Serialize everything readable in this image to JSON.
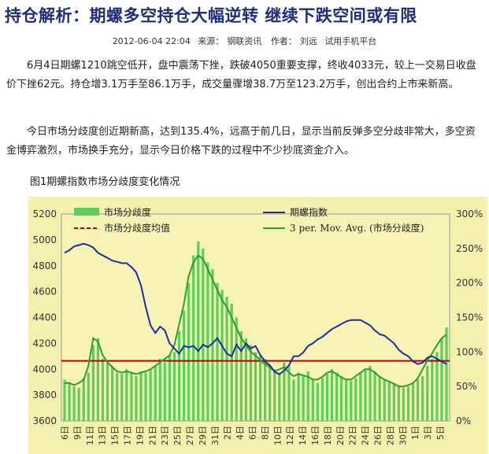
{
  "article": {
    "title": "持仓解析：期螺多空持仓大幅逆转  继续下跌空间或有限",
    "meta": {
      "datetime": "2012-06-04 22:04",
      "source_label": "来源：",
      "source": "钢联资讯",
      "author_label": "作者：",
      "author": "刘远",
      "link": "试用手机平台"
    },
    "paragraphs": [
      "6月4日期螺1210跳空低开，盘中震荡下挫，跌破4050重要支撑，终收4033元，较上一交易日收盘价下挫62元。持仓增3.1万手至86.1万手，成交量骤增38.7万至123.2万手，创出合约上市来新高。",
      "今日市场分歧度创近期新高，达到135.4%，远高于前几日，显示当前反弹多空分歧非常大，多空资金博弈激烈，市场换手充分，显示今日价格下跌的过程中不少抄底资金介入。"
    ],
    "figure_caption": "图1期螺指数市场分歧度变化情况"
  },
  "chart_data": {
    "type": "line",
    "title": "",
    "legend": [
      {
        "name": "市场分歧度",
        "color": "#4cc04c",
        "kind": "bar"
      },
      {
        "name": "市场分歧度均值",
        "color": "#c00000",
        "kind": "dashed"
      },
      {
        "name": "期螺指数",
        "color": "#1c2e9e",
        "kind": "line"
      },
      {
        "name": "3 per. Mov. Avg. (市场分歧度)",
        "color": "#2fa02f",
        "kind": "line"
      }
    ],
    "y_left": {
      "min": 3600,
      "max": 5200,
      "ticks": [
        "3600",
        "3800",
        "4000",
        "4200",
        "4400",
        "4600",
        "4800",
        "5000",
        "5200"
      ]
    },
    "y_right": {
      "min": 0,
      "max": 300,
      "ticks": [
        "0%",
        "50%",
        "100%",
        "150%",
        "200%",
        "250%",
        "300%"
      ]
    },
    "x_tick_labels": [
      "6日",
      "9日",
      "11日",
      "13日",
      "15日",
      "17日",
      "19日",
      "21日",
      "23日",
      "25日",
      "27日",
      "29日",
      "31日",
      "2日",
      "4日",
      "6日",
      "8日",
      "10日",
      "12日",
      "14日",
      "16日",
      "18日",
      "20日",
      "22日",
      "24日",
      "26日",
      "28日",
      "30日",
      "1日",
      "3日",
      "5日"
    ],
    "mean_value": 4065,
    "price_index": [
      4900,
      4920,
      4950,
      4960,
      4970,
      4960,
      4940,
      4900,
      4880,
      4860,
      4840,
      4830,
      4820,
      4820,
      4790,
      4750,
      4650,
      4480,
      4340,
      4280,
      4330,
      4300,
      4200,
      4160,
      4120,
      4180,
      4170,
      4180,
      4140,
      4190,
      4170,
      4200,
      4240,
      4180,
      4120,
      4100,
      4190,
      4140,
      4200,
      4160,
      4180,
      4110,
      4060,
      4030,
      3980,
      3960,
      3990,
      4030,
      4100,
      4100,
      4130,
      4180,
      4200,
      4230,
      4250,
      4280,
      4310,
      4330,
      4350,
      4370,
      4380,
      4380,
      4380,
      4360,
      4340,
      4300,
      4270,
      4260,
      4230,
      4200,
      4150,
      4120,
      4100,
      4060,
      4040,
      4050,
      4090,
      4100,
      4080,
      4060,
      4040
    ],
    "divergence": [
      60,
      55,
      50,
      48,
      62,
      70,
      110,
      120,
      90,
      85,
      80,
      70,
      68,
      75,
      70,
      65,
      72,
      70,
      75,
      80,
      90,
      85,
      95,
      100,
      130,
      160,
      200,
      240,
      260,
      250,
      230,
      220,
      200,
      190,
      180,
      170,
      150,
      130,
      120,
      110,
      100,
      95,
      90,
      80,
      75,
      70,
      85,
      80,
      60,
      70,
      65,
      72,
      60,
      55,
      62,
      68,
      75,
      70,
      65,
      60,
      58,
      62,
      70,
      75,
      80,
      72,
      65,
      60,
      58,
      55,
      52,
      48,
      50,
      55,
      60,
      65,
      80,
      90,
      100,
      120,
      135.4
    ],
    "moving_avg": [
      55,
      55,
      52,
      55,
      60,
      80,
      120,
      115,
      95,
      85,
      78,
      72,
      70,
      72,
      70,
      68,
      70,
      72,
      75,
      80,
      85,
      90,
      95,
      110,
      140,
      170,
      210,
      230,
      240,
      235,
      220,
      205,
      190,
      175,
      165,
      150,
      135,
      120,
      110,
      100,
      95,
      88,
      82,
      78,
      72,
      75,
      78,
      70,
      65,
      68,
      66,
      64,
      60,
      60,
      64,
      70,
      72,
      68,
      63,
      60,
      60,
      65,
      70,
      75,
      75,
      70,
      64,
      60,
      57,
      54,
      50,
      50,
      52,
      55,
      62,
      75,
      88,
      98,
      110,
      120,
      125
    ]
  }
}
